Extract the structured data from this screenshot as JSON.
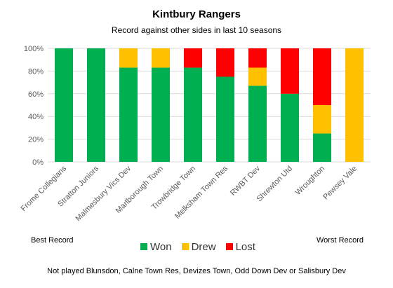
{
  "colors": {
    "won": "#00b050",
    "drew": "#ffc000",
    "lost": "#ff0000",
    "grid": "#d9d9d9",
    "axis_text": "#595959"
  },
  "annotations": {
    "best": "Best Record",
    "worst": "Worst Record",
    "footnote": "Not played Blunsdon, Calne Town Res, Devizes Town, Odd Down Dev or Salisbury Dev"
  },
  "chart_data": {
    "type": "bar",
    "stacked": true,
    "title": "Kintbury Rangers",
    "subtitle": "Record against other sides in last 10 seasons",
    "xlabel": "",
    "ylabel": "",
    "ylim": [
      0,
      100
    ],
    "y_ticks": [
      "0%",
      "20%",
      "40%",
      "60%",
      "80%",
      "100%"
    ],
    "grid": true,
    "legend_position": "bottom",
    "categories": [
      "Frome Collegians",
      "Stratton Juniors",
      "Malmesbury Vics Dev",
      "Marlborough Town",
      "Trowbridge Town",
      "Melksham Town Res",
      "RWBT Dev",
      "Shrewton Utd",
      "Wroughton",
      "Pewsey Vale"
    ],
    "series": [
      {
        "name": "Won",
        "values": [
          100,
          100,
          83,
          83,
          83,
          75,
          67,
          60,
          25,
          0
        ]
      },
      {
        "name": "Drew",
        "values": [
          0,
          0,
          17,
          17,
          0,
          0,
          16,
          0,
          25,
          100
        ]
      },
      {
        "name": "Lost",
        "values": [
          0,
          0,
          0,
          0,
          17,
          25,
          17,
          40,
          50,
          0
        ]
      }
    ]
  }
}
